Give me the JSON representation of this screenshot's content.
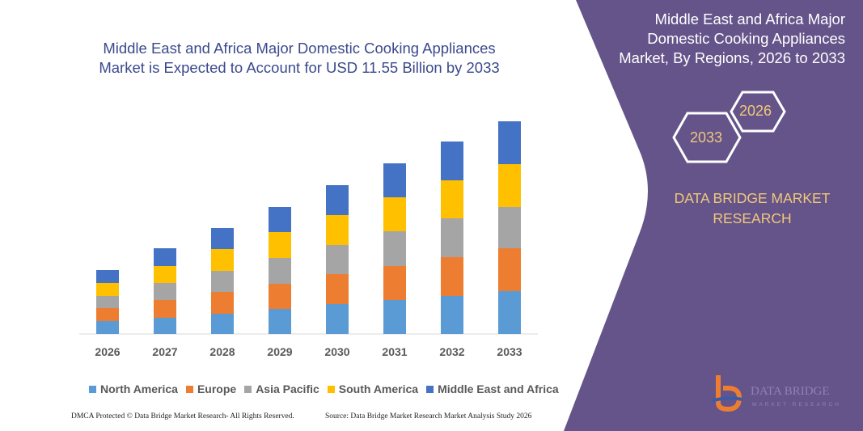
{
  "title": "Middle East and Africa Major Domestic Cooking Appliances Market is Expected to Account for USD 11.55 Billion by 2033",
  "side_panel": {
    "title": "Middle East and Africa Major Domestic Cooking Appliances Market, By Regions, 2026 to 2033",
    "hex_start": "2026",
    "hex_end": "2033",
    "brand": "DATA BRIDGE MARKET RESEARCH",
    "logo_text": "DATA BRIDGE MARKET RESEARCH",
    "color": "#65548a",
    "accent": "#f0c87a"
  },
  "footer": {
    "left": "DMCA Protected © Data Bridge Market Research- All Rights Reserved.",
    "right": "Source: Data Bridge Market Research Market Analysis Study 2026"
  },
  "chart_data": {
    "type": "bar",
    "stacked": true,
    "title": "Middle East and Africa Major Domestic Cooking Appliances Market is Expected to Account for USD 11.55 Billion by 2033",
    "xlabel": "",
    "ylabel": "",
    "grid": false,
    "legend_position": "bottom",
    "categories": [
      "2026",
      "2027",
      "2028",
      "2029",
      "2030",
      "2031",
      "2032",
      "2033"
    ],
    "series": [
      {
        "name": "North America",
        "color": "#5b9bd5",
        "values": [
          16,
          20,
          25,
          31,
          37,
          42,
          47,
          53
        ]
      },
      {
        "name": "Europe",
        "color": "#ed7d31",
        "values": [
          16,
          22,
          27,
          31,
          37,
          42,
          48,
          53
        ]
      },
      {
        "name": "Asia Pacific",
        "color": "#a5a5a5",
        "values": [
          15,
          21,
          26,
          32,
          36,
          43,
          48,
          51
        ]
      },
      {
        "name": "South America",
        "color": "#ffc000",
        "values": [
          16,
          21,
          27,
          32,
          37,
          42,
          47,
          53
        ]
      },
      {
        "name": "Middle East and Africa",
        "color": "#4472c4",
        "values": [
          16,
          22,
          26,
          31,
          37,
          42,
          48,
          53
        ]
      }
    ]
  }
}
